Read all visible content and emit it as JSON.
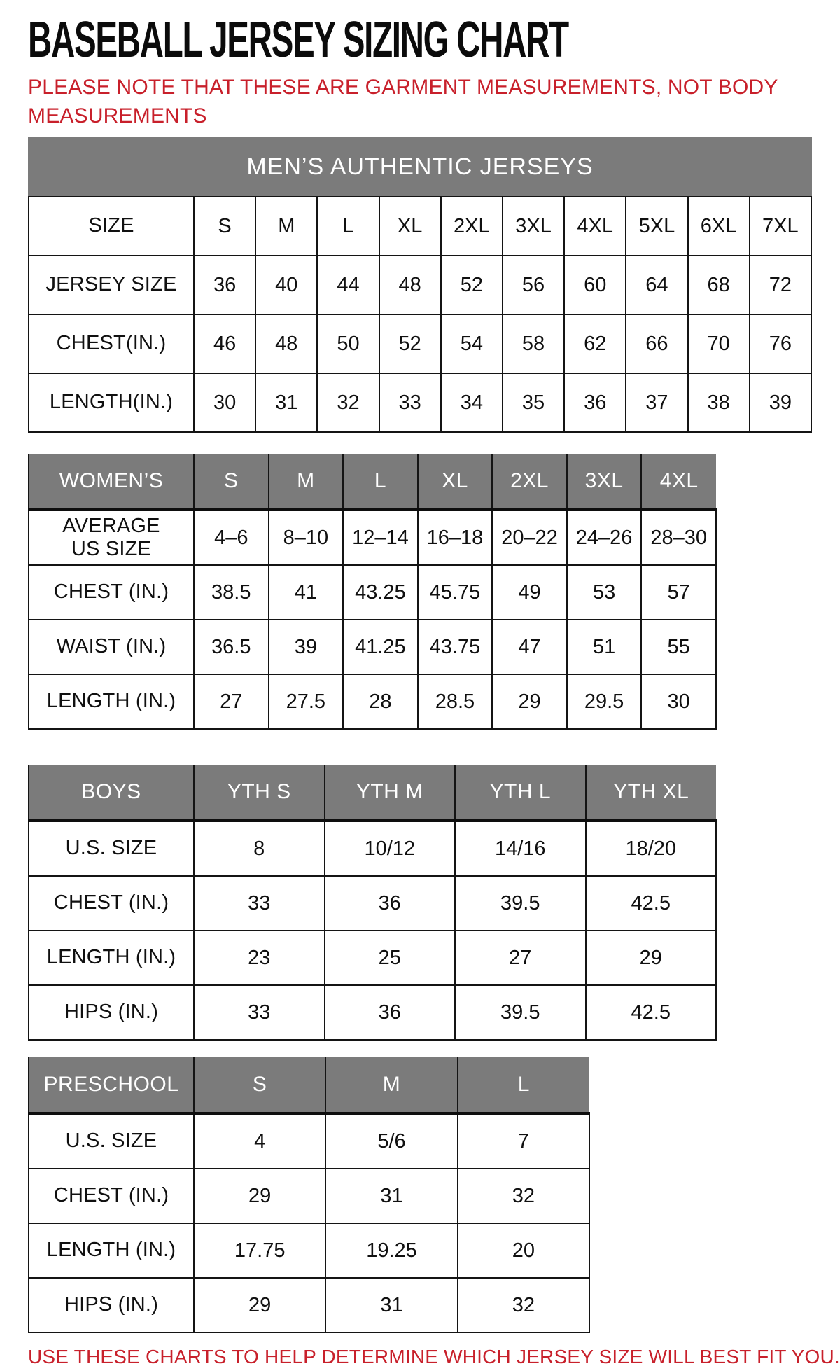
{
  "page": {
    "title": "BASEBALL JERSEY SIZING CHART",
    "note_top": "PLEASE NOTE THAT THESE ARE GARMENT MEASUREMENTS, NOT BODY MEASUREMENTS",
    "note_bottom": "USE THESE CHARTS TO HELP DETERMINE WHICH JERSEY SIZE WILL BEST FIT YOU.",
    "colors": {
      "accent_red": "#c8202b",
      "header_gray": "#7b7b7b",
      "border_black": "#141414"
    }
  },
  "tables": {
    "mens": {
      "banner": "MEN’S AUTHENTIC JERSEYS",
      "rows": [
        {
          "label": "SIZE",
          "values": [
            "S",
            "M",
            "L",
            "XL",
            "2XL",
            "3XL",
            "4XL",
            "5XL",
            "6XL",
            "7XL"
          ]
        },
        {
          "label": "JERSEY SIZE",
          "values": [
            "36",
            "40",
            "44",
            "48",
            "52",
            "56",
            "60",
            "64",
            "68",
            "72"
          ]
        },
        {
          "label": "CHEST(IN.)",
          "values": [
            "46",
            "48",
            "50",
            "52",
            "54",
            "58",
            "62",
            "66",
            "70",
            "76"
          ]
        },
        {
          "label": "LENGTH(IN.)",
          "values": [
            "30",
            "31",
            "32",
            "33",
            "34",
            "35",
            "36",
            "37",
            "38",
            "39"
          ]
        }
      ]
    },
    "womens": {
      "header": {
        "label": "WOMEN’S",
        "values": [
          "S",
          "M",
          "L",
          "XL",
          "2XL",
          "3XL",
          "4XL"
        ]
      },
      "rows": [
        {
          "label": "AVERAGE\nUS SIZE",
          "values": [
            "4–6",
            "8–10",
            "12–14",
            "16–18",
            "20–22",
            "24–26",
            "28–30"
          ]
        },
        {
          "label": "CHEST (IN.)",
          "values": [
            "38.5",
            "41",
            "43.25",
            "45.75",
            "49",
            "53",
            "57"
          ]
        },
        {
          "label": "WAIST (IN.)",
          "values": [
            "36.5",
            "39",
            "41.25",
            "43.75",
            "47",
            "51",
            "55"
          ]
        },
        {
          "label": "LENGTH (IN.)",
          "values": [
            "27",
            "27.5",
            "28",
            "28.5",
            "29",
            "29.5",
            "30"
          ]
        }
      ]
    },
    "boys": {
      "header": {
        "label": "BOYS",
        "values": [
          "YTH S",
          "YTH M",
          "YTH L",
          "YTH XL"
        ]
      },
      "rows": [
        {
          "label": "U.S. SIZE",
          "values": [
            "8",
            "10/12",
            "14/16",
            "18/20"
          ]
        },
        {
          "label": "CHEST (IN.)",
          "values": [
            "33",
            "36",
            "39.5",
            "42.5"
          ]
        },
        {
          "label": "LENGTH (IN.)",
          "values": [
            "23",
            "25",
            "27",
            "29"
          ]
        },
        {
          "label": "HIPS (IN.)",
          "values": [
            "33",
            "36",
            "39.5",
            "42.5"
          ]
        }
      ]
    },
    "preschool": {
      "header": {
        "label": "PRESCHOOL",
        "values": [
          "S",
          "M",
          "L"
        ]
      },
      "rows": [
        {
          "label": "U.S. SIZE",
          "values": [
            "4",
            "5/6",
            "7"
          ]
        },
        {
          "label": "CHEST (IN.)",
          "values": [
            "29",
            "31",
            "32"
          ]
        },
        {
          "label": "LENGTH (IN.)",
          "values": [
            "17.75",
            "19.25",
            "20"
          ]
        },
        {
          "label": "HIPS (IN.)",
          "values": [
            "29",
            "31",
            "32"
          ]
        }
      ]
    }
  }
}
